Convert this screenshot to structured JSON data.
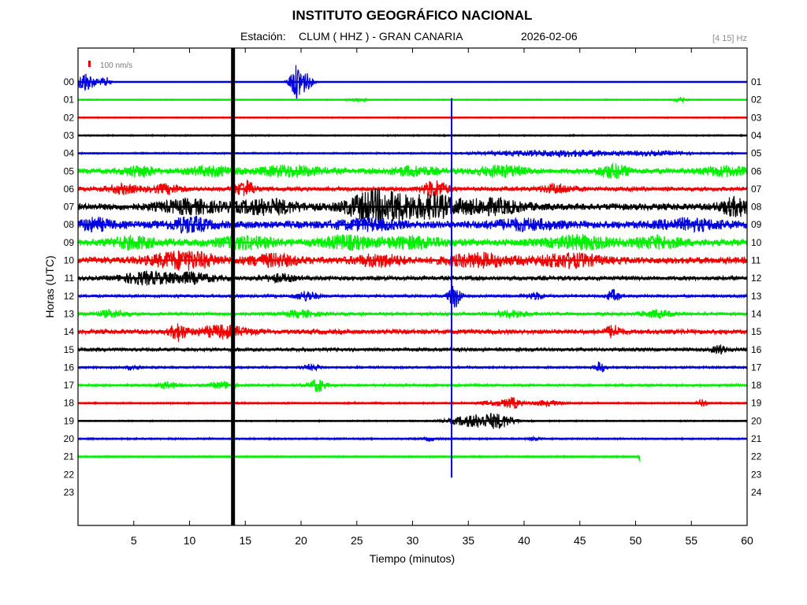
{
  "header": {
    "title": "INSTITUTO GEOGRÁFICO NACIONAL",
    "station_prefix": "Estación:",
    "station": "CLUM ( HHZ ) - GRAN CANARIA",
    "date": "2026-02-06",
    "band": "[4 15] Hz"
  },
  "scale_bar": {
    "label": "100 nm/s",
    "color": "#e00000"
  },
  "chart_data": {
    "type": "line",
    "title": "INSTITUTO GEOGRÁFICO NACIONAL",
    "xlabel": "Tiempo (minutos)",
    "ylabel": "Horas (UTC)",
    "xlim": [
      0,
      60
    ],
    "x_ticks": [
      "5",
      "10",
      "15",
      "20",
      "25",
      "30",
      "35",
      "40",
      "45",
      "50",
      "55",
      "60"
    ],
    "left_hour_labels": [
      "00",
      "01",
      "02",
      "03",
      "04",
      "05",
      "06",
      "07",
      "08",
      "09",
      "10",
      "11",
      "12",
      "13",
      "14",
      "15",
      "16",
      "17",
      "18",
      "19",
      "20",
      "21",
      "22",
      "23"
    ],
    "right_hour_labels": [
      "01",
      "02",
      "03",
      "04",
      "05",
      "06",
      "07",
      "08",
      "09",
      "10",
      "11",
      "12",
      "13",
      "14",
      "15",
      "16",
      "17",
      "18",
      "19",
      "20",
      "21",
      "22",
      "23",
      "24"
    ],
    "trace_colors": [
      "#0000dd",
      "#00ee00",
      "#ee0000",
      "#000000"
    ],
    "grid": false,
    "series": [
      {
        "hour": "00",
        "color": "#0000dd",
        "end_minute": 60,
        "noise": 0.4,
        "bursts": [
          {
            "t": 0.5,
            "amp": 10,
            "w": 0.4
          },
          {
            "t": 1.2,
            "amp": 6,
            "w": 0.6
          },
          {
            "t": 2.5,
            "amp": 6,
            "w": 0.3
          },
          {
            "t": 19.5,
            "amp": 18,
            "w": 0.4
          },
          {
            "t": 20.3,
            "amp": 12,
            "w": 0.5
          }
        ]
      },
      {
        "hour": "01",
        "color": "#00ee00",
        "end_minute": 60,
        "noise": 0.7,
        "bursts": [
          {
            "t": 25,
            "amp": 2,
            "w": 0.5
          },
          {
            "t": 54,
            "amp": 3,
            "w": 0.4
          }
        ]
      },
      {
        "hour": "02",
        "color": "#ee0000",
        "end_minute": 60,
        "noise": 0.7,
        "bursts": []
      },
      {
        "hour": "03",
        "color": "#000000",
        "end_minute": 60,
        "noise": 0.8,
        "bursts": []
      },
      {
        "hour": "04",
        "color": "#0000dd",
        "end_minute": 60,
        "noise": 1.0,
        "bursts": [
          {
            "t": 40,
            "amp": 2,
            "w": 3
          },
          {
            "t": 45,
            "amp": 3,
            "w": 3
          },
          {
            "t": 52,
            "amp": 2,
            "w": 2
          }
        ]
      },
      {
        "hour": "05",
        "color": "#00ee00",
        "end_minute": 60,
        "noise": 3.0,
        "bursts": [
          {
            "t": 5.5,
            "amp": 6,
            "w": 1
          },
          {
            "t": 12,
            "amp": 5,
            "w": 1.5
          },
          {
            "t": 19,
            "amp": 6,
            "w": 2
          },
          {
            "t": 30,
            "amp": 5,
            "w": 1.5
          },
          {
            "t": 38,
            "amp": 6,
            "w": 1.5
          },
          {
            "t": 48,
            "amp": 8,
            "w": 1
          },
          {
            "t": 58,
            "amp": 5,
            "w": 1.5
          }
        ]
      },
      {
        "hour": "06",
        "color": "#ee0000",
        "end_minute": 60,
        "noise": 2.5,
        "bursts": [
          {
            "t": 4,
            "amp": 5,
            "w": 1
          },
          {
            "t": 8,
            "amp": 5,
            "w": 1
          },
          {
            "t": 15,
            "amp": 10,
            "w": 0.6
          },
          {
            "t": 32,
            "amp": 10,
            "w": 0.8
          },
          {
            "t": 43,
            "amp": 5,
            "w": 1
          }
        ]
      },
      {
        "hour": "07",
        "color": "#000000",
        "end_minute": 60,
        "noise": 4.0,
        "bursts": [
          {
            "t": 10,
            "amp": 7,
            "w": 2
          },
          {
            "t": 17,
            "amp": 8,
            "w": 2
          },
          {
            "t": 26,
            "amp": 14,
            "w": 1.5
          },
          {
            "t": 28.5,
            "amp": 12,
            "w": 1.5
          },
          {
            "t": 32,
            "amp": 12,
            "w": 1.5
          },
          {
            "t": 37,
            "amp": 8,
            "w": 2
          },
          {
            "t": 59,
            "amp": 10,
            "w": 1
          }
        ]
      },
      {
        "hour": "08",
        "color": "#0000dd",
        "end_minute": 60,
        "noise": 4.5,
        "bursts": [
          {
            "t": 1.5,
            "amp": 6,
            "w": 1
          },
          {
            "t": 10,
            "amp": 8,
            "w": 1.2
          },
          {
            "t": 26,
            "amp": 5,
            "w": 2
          },
          {
            "t": 40,
            "amp": 5,
            "w": 2
          },
          {
            "t": 55,
            "amp": 5,
            "w": 2
          }
        ]
      },
      {
        "hour": "09",
        "color": "#00ee00",
        "end_minute": 60,
        "noise": 4.0,
        "bursts": [
          {
            "t": 5,
            "amp": 6,
            "w": 1.5
          },
          {
            "t": 15,
            "amp": 6,
            "w": 2
          },
          {
            "t": 24,
            "amp": 7,
            "w": 1.5
          },
          {
            "t": 30,
            "amp": 6,
            "w": 2
          },
          {
            "t": 45,
            "amp": 7,
            "w": 2
          },
          {
            "t": 52,
            "amp": 6,
            "w": 1.5
          }
        ]
      },
      {
        "hour": "10",
        "color": "#ee0000",
        "end_minute": 60,
        "noise": 4.0,
        "bursts": [
          {
            "t": 9.5,
            "amp": 10,
            "w": 2
          },
          {
            "t": 17.5,
            "amp": 6,
            "w": 1.5
          },
          {
            "t": 27,
            "amp": 6,
            "w": 1.5
          },
          {
            "t": 36,
            "amp": 7,
            "w": 2
          },
          {
            "t": 44,
            "amp": 7,
            "w": 2
          }
        ]
      },
      {
        "hour": "11",
        "color": "#000000",
        "end_minute": 60,
        "noise": 2.5,
        "bursts": [
          {
            "t": 6,
            "amp": 7,
            "w": 1.5
          },
          {
            "t": 10,
            "amp": 6,
            "w": 1.5
          },
          {
            "t": 18,
            "amp": 4,
            "w": 1
          }
        ]
      },
      {
        "hour": "12",
        "color": "#0000dd",
        "end_minute": 60,
        "noise": 1.6,
        "bursts": [
          {
            "t": 20.5,
            "amp": 6,
            "w": 0.7
          },
          {
            "t": 33.8,
            "amp": 14,
            "w": 0.4
          },
          {
            "t": 41,
            "amp": 4,
            "w": 0.6
          },
          {
            "t": 48,
            "amp": 7,
            "w": 0.4
          }
        ]
      },
      {
        "hour": "13",
        "color": "#00ee00",
        "end_minute": 60,
        "noise": 1.8,
        "bursts": [
          {
            "t": 3,
            "amp": 4,
            "w": 1
          },
          {
            "t": 20,
            "amp": 4,
            "w": 1
          },
          {
            "t": 39,
            "amp": 4,
            "w": 1
          },
          {
            "t": 52,
            "amp": 4,
            "w": 1
          }
        ]
      },
      {
        "hour": "14",
        "color": "#ee0000",
        "end_minute": 60,
        "noise": 2.8,
        "bursts": [
          {
            "t": 9,
            "amp": 10,
            "w": 0.5
          },
          {
            "t": 13,
            "amp": 7,
            "w": 1.5
          },
          {
            "t": 48,
            "amp": 7,
            "w": 0.5
          }
        ]
      },
      {
        "hour": "15",
        "color": "#000000",
        "end_minute": 60,
        "noise": 2.0,
        "bursts": [
          {
            "t": 57.5,
            "amp": 5,
            "w": 0.4
          }
        ]
      },
      {
        "hour": "16",
        "color": "#0000dd",
        "end_minute": 60,
        "noise": 1.3,
        "bursts": [
          {
            "t": 5,
            "amp": 3,
            "w": 0.4
          },
          {
            "t": 21,
            "amp": 3,
            "w": 0.6
          },
          {
            "t": 46.8,
            "amp": 7,
            "w": 0.3
          }
        ]
      },
      {
        "hour": "17",
        "color": "#00ee00",
        "end_minute": 60,
        "noise": 1.3,
        "bursts": [
          {
            "t": 8,
            "amp": 3,
            "w": 0.8
          },
          {
            "t": 13,
            "amp": 4,
            "w": 0.8
          },
          {
            "t": 21.5,
            "amp": 8,
            "w": 0.5
          }
        ]
      },
      {
        "hour": "18",
        "color": "#ee0000",
        "end_minute": 60,
        "noise": 1.0,
        "bursts": [
          {
            "t": 37.5,
            "amp": 3,
            "w": 1
          },
          {
            "t": 39,
            "amp": 6,
            "w": 0.5
          },
          {
            "t": 42,
            "amp": 3,
            "w": 1
          },
          {
            "t": 56,
            "amp": 4,
            "w": 0.3
          }
        ]
      },
      {
        "hour": "19",
        "color": "#000000",
        "end_minute": 60,
        "noise": 0.8,
        "bursts": [
          {
            "t": 35.5,
            "amp": 7,
            "w": 1.5
          },
          {
            "t": 37.8,
            "amp": 7,
            "w": 1
          }
        ]
      },
      {
        "hour": "20",
        "color": "#0000dd",
        "end_minute": 60,
        "noise": 1.0,
        "bursts": [
          {
            "t": 31.5,
            "amp": 2,
            "w": 0.4
          },
          {
            "t": 41,
            "amp": 2,
            "w": 0.4
          }
        ]
      },
      {
        "hour": "21",
        "color": "#00ee00",
        "end_minute": 50.4,
        "noise": 0.9,
        "bursts": [
          {
            "t": 50.4,
            "amp": 7,
            "w": 0.1
          }
        ]
      },
      {
        "hour": "22",
        "color": "#00ee00",
        "end_minute": 0,
        "noise": 0,
        "bursts": []
      },
      {
        "hour": "23",
        "color": "#00ee00",
        "end_minute": 0,
        "noise": 0,
        "bursts": []
      }
    ],
    "events": [
      {
        "minute": 13.9,
        "start_hour": "00",
        "end_hour": "23",
        "type": "large-earthquake"
      },
      {
        "minute": 33.5,
        "start_hour": "01",
        "end_hour": "22",
        "type": "earthquake"
      }
    ]
  }
}
